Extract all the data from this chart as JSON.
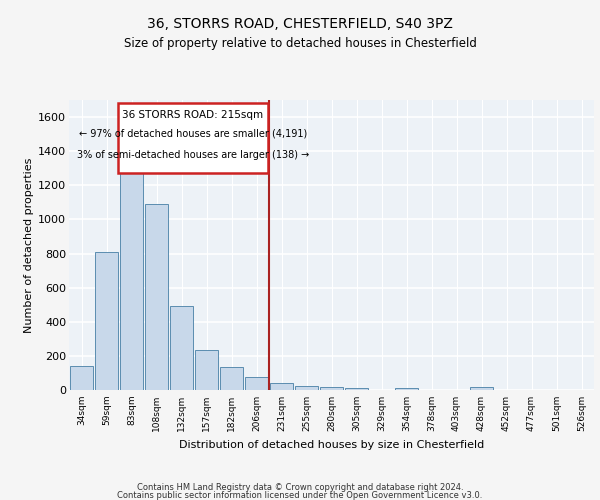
{
  "title1": "36, STORRS ROAD, CHESTERFIELD, S40 3PZ",
  "title2": "Size of property relative to detached houses in Chesterfield",
  "xlabel": "Distribution of detached houses by size in Chesterfield",
  "ylabel": "Number of detached properties",
  "bar_labels": [
    "34sqm",
    "59sqm",
    "83sqm",
    "108sqm",
    "132sqm",
    "157sqm",
    "182sqm",
    "206sqm",
    "231sqm",
    "255sqm",
    "280sqm",
    "305sqm",
    "329sqm",
    "354sqm",
    "378sqm",
    "403sqm",
    "428sqm",
    "452sqm",
    "477sqm",
    "501sqm",
    "526sqm"
  ],
  "bar_values": [
    140,
    810,
    1300,
    1090,
    490,
    235,
    135,
    75,
    40,
    25,
    15,
    10,
    0,
    10,
    0,
    0,
    15,
    0,
    0,
    0,
    0
  ],
  "bar_color": "#c8d8ea",
  "bar_edge_color": "#5b8db0",
  "vline_color": "#aa2222",
  "annotation_text_line1": "36 STORRS ROAD: 215sqm",
  "annotation_text_line2": "← 97% of detached houses are smaller (4,191)",
  "annotation_text_line3": "3% of semi-detached houses are larger (138) →",
  "annotation_box_color": "#cc2222",
  "ylim": [
    0,
    1700
  ],
  "yticks": [
    0,
    200,
    400,
    600,
    800,
    1000,
    1200,
    1400,
    1600
  ],
  "footer1": "Contains HM Land Registry data © Crown copyright and database right 2024.",
  "footer2": "Contains public sector information licensed under the Open Government Licence v3.0.",
  "bg_color": "#edf2f7",
  "grid_color": "#ffffff",
  "fig_bg_color": "#f5f5f5"
}
